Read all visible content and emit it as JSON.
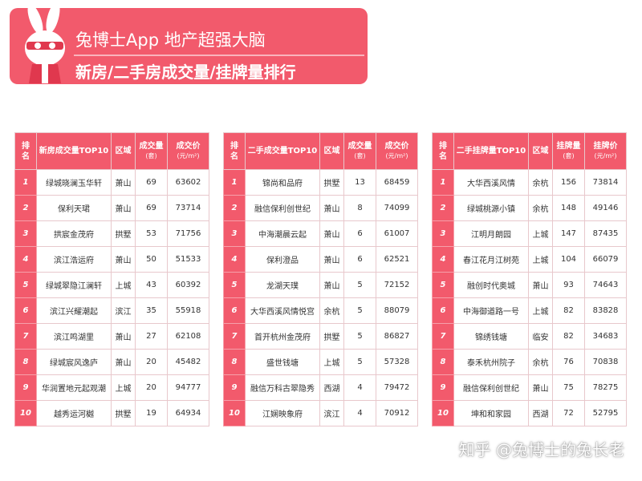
{
  "header": {
    "title": "兔博士App 地产超强大脑",
    "subtitle": "新房/二手房成交量/挂牌量排行"
  },
  "tables": [
    {
      "headers": [
        {
          "text": "排名"
        },
        {
          "text": "新房成交量TOP10"
        },
        {
          "text": "区域"
        },
        {
          "text": "成交量",
          "sub": "(套)"
        },
        {
          "text": "成交价",
          "sub": "(元/m²)"
        }
      ],
      "rows": [
        [
          1,
          "绿城晓澜玉华轩",
          "萧山",
          69,
          63602
        ],
        [
          2,
          "保利天珺",
          "萧山",
          69,
          73714
        ],
        [
          3,
          "拱宸金茂府",
          "拱墅",
          53,
          71756
        ],
        [
          4,
          "滨江浩运府",
          "萧山",
          50,
          51533
        ],
        [
          5,
          "绿城翠隐江澜轩",
          "上城",
          43,
          60392
        ],
        [
          6,
          "滨江兴耀潮起",
          "滨江",
          35,
          55918
        ],
        [
          7,
          "滨江鸣湖里",
          "萧山",
          27,
          62108
        ],
        [
          8,
          "绿城宸风逸庐",
          "萧山",
          20,
          45482
        ],
        [
          9,
          "华润置地元起观潮",
          "上城",
          20,
          94777
        ],
        [
          10,
          "越秀运河樾",
          "拱墅",
          19,
          64934
        ]
      ]
    },
    {
      "headers": [
        {
          "text": "排名"
        },
        {
          "text": "二手成交量TOP10"
        },
        {
          "text": "区域"
        },
        {
          "text": "成交量",
          "sub": "(套)"
        },
        {
          "text": "成交价",
          "sub": "(元/m²)"
        }
      ],
      "rows": [
        [
          1,
          "锦尚和品府",
          "拱墅",
          13,
          68459
        ],
        [
          2,
          "融信保利创世纪",
          "萧山",
          8,
          74099
        ],
        [
          3,
          "中海潮晨云起",
          "萧山",
          6,
          61007
        ],
        [
          4,
          "保利澄品",
          "萧山",
          6,
          62521
        ],
        [
          5,
          "龙湖天璞",
          "萧山",
          5,
          72152
        ],
        [
          6,
          "大华西溪风情悦宫",
          "余杭",
          5,
          88079
        ],
        [
          7,
          "首开杭州金茂府",
          "拱墅",
          5,
          86827
        ],
        [
          8,
          "盛世钱塘",
          "上城",
          5,
          57328
        ],
        [
          9,
          "融信万科古翠隐秀",
          "西湖",
          4,
          79472
        ],
        [
          10,
          "江娴映象府",
          "滨江",
          4,
          70912
        ]
      ]
    },
    {
      "headers": [
        {
          "text": "排名"
        },
        {
          "text": "二手挂牌量TOP10"
        },
        {
          "text": "区域"
        },
        {
          "text": "挂牌量",
          "sub": "(套)"
        },
        {
          "text": "挂牌价",
          "sub": "(元/m²)"
        }
      ],
      "rows": [
        [
          1,
          "大华西溪风情",
          "余杭",
          156,
          73814
        ],
        [
          2,
          "绿城桃源小镇",
          "余杭",
          148,
          49146
        ],
        [
          3,
          "江明月朗园",
          "上城",
          147,
          87435
        ],
        [
          4,
          "春江花月江树苑",
          "上城",
          104,
          66079
        ],
        [
          5,
          "融创时代奥城",
          "萧山",
          93,
          74643
        ],
        [
          6,
          "中海御道路一号",
          "上城",
          82,
          83828
        ],
        [
          7,
          "锦绣钱塘",
          "临安",
          82,
          34683
        ],
        [
          8,
          "泰禾杭州院子",
          "余杭",
          76,
          70838
        ],
        [
          9,
          "融信保利创世纪",
          "萧山",
          75,
          78275
        ],
        [
          10,
          "坤和和家园",
          "西湖",
          72,
          52795
        ]
      ]
    }
  ],
  "watermark": "知乎 @兔博士的兔长老"
}
